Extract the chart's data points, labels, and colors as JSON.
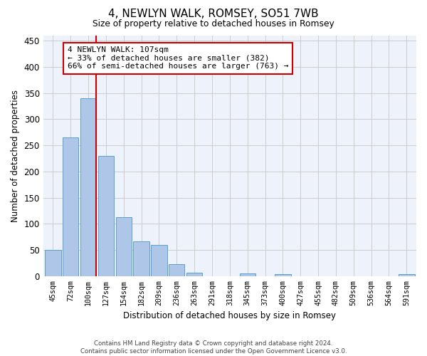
{
  "title": "4, NEWLYN WALK, ROMSEY, SO51 7WB",
  "subtitle": "Size of property relative to detached houses in Romsey",
  "xlabel": "Distribution of detached houses by size in Romsey",
  "ylabel": "Number of detached properties",
  "bar_labels": [
    "45sqm",
    "72sqm",
    "100sqm",
    "127sqm",
    "154sqm",
    "182sqm",
    "209sqm",
    "236sqm",
    "263sqm",
    "291sqm",
    "318sqm",
    "345sqm",
    "373sqm",
    "400sqm",
    "427sqm",
    "455sqm",
    "482sqm",
    "509sqm",
    "536sqm",
    "564sqm",
    "591sqm"
  ],
  "bar_values": [
    50,
    265,
    340,
    230,
    113,
    67,
    60,
    23,
    6,
    0,
    0,
    5,
    0,
    4,
    0,
    0,
    0,
    0,
    0,
    0,
    4
  ],
  "bar_color": "#aec6e8",
  "bar_edge_color": "#5a9fd4",
  "grid_color": "#cccccc",
  "bg_color": "#eef2fb",
  "vline_x_idx": 2,
  "vline_color": "#cc0000",
  "annotation_text": "4 NEWLYN WALK: 107sqm\n← 33% of detached houses are smaller (382)\n66% of semi-detached houses are larger (763) →",
  "annotation_box_color": "#cc0000",
  "footer_line1": "Contains HM Land Registry data © Crown copyright and database right 2024.",
  "footer_line2": "Contains public sector information licensed under the Open Government Licence v3.0.",
  "ylim": [
    0,
    460
  ],
  "yticks": [
    0,
    50,
    100,
    150,
    200,
    250,
    300,
    350,
    400,
    450
  ]
}
